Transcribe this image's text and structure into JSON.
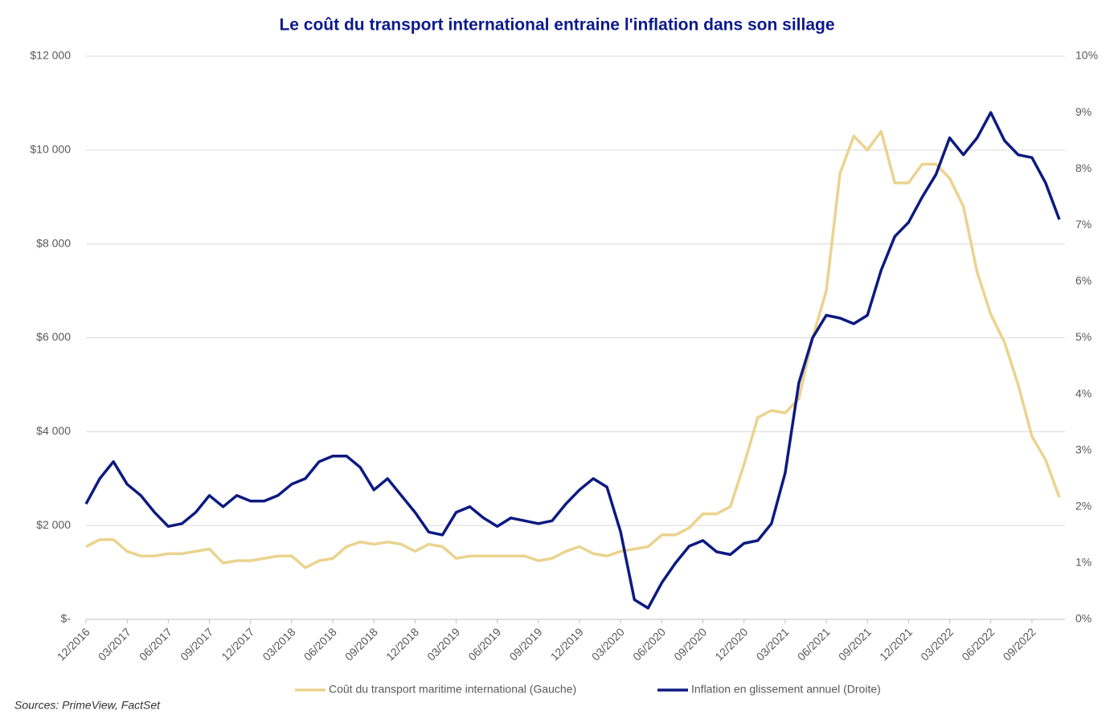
{
  "chart_data": {
    "type": "line",
    "title": "Le coût du transport international entraine l'inflation dans son sillage",
    "source": "Sources: PrimeView, FactSet",
    "categories": [
      "12/2016",
      null,
      null,
      "03/2017",
      null,
      null,
      "06/2017",
      null,
      null,
      "09/2017",
      null,
      null,
      "12/2017",
      null,
      null,
      "03/2018",
      null,
      null,
      "06/2018",
      null,
      null,
      "09/2018",
      null,
      null,
      "12/2018",
      null,
      null,
      "03/2019",
      null,
      null,
      "06/2019",
      null,
      null,
      "09/2019",
      null,
      null,
      "12/2019",
      null,
      null,
      "03/2020",
      null,
      null,
      "06/2020",
      null,
      null,
      "09/2020",
      null,
      null,
      "12/2020",
      null,
      null,
      "03/2021",
      null,
      null,
      "06/2021",
      null,
      null,
      "09/2021",
      null,
      null,
      "12/2021",
      null,
      null,
      "03/2022",
      null,
      null,
      "06/2022",
      null,
      null,
      "09/2022",
      null,
      null
    ],
    "series": [
      {
        "name": "Coût du transport maritime international (Gauche)",
        "color": "#ebd38f",
        "axis": "y",
        "values": [
          1550,
          1700,
          1700,
          1450,
          1350,
          1350,
          1400,
          1400,
          1450,
          1500,
          1200,
          1250,
          1250,
          1300,
          1350,
          1350,
          1100,
          1250,
          1300,
          1550,
          1650,
          1600,
          1650,
          1600,
          1450,
          1600,
          1550,
          1300,
          1350,
          1350,
          1350,
          1350,
          1350,
          1250,
          1300,
          1450,
          1550,
          1400,
          1350,
          1450,
          1500,
          1550,
          1800,
          1800,
          1950,
          2250,
          2250,
          2400,
          3300,
          4300,
          4450,
          4400,
          4700,
          6000,
          7000,
          9500,
          10300,
          10000,
          10400,
          9300,
          9300,
          9700,
          9700,
          9400,
          8800,
          7400,
          6500,
          5900,
          5000,
          3900,
          3400,
          2600
        ]
      },
      {
        "name": "Inflation en glissement annuel (Droite)",
        "color": "#0d1a80",
        "axis": "y2",
        "values": [
          2.05,
          2.5,
          2.8,
          2.4,
          2.2,
          1.9,
          1.65,
          1.7,
          1.9,
          2.2,
          2.0,
          2.2,
          2.1,
          2.1,
          2.2,
          2.4,
          2.5,
          2.8,
          2.9,
          2.9,
          2.7,
          2.3,
          2.5,
          2.2,
          1.9,
          1.55,
          1.5,
          1.9,
          2.0,
          1.8,
          1.65,
          1.8,
          1.75,
          1.7,
          1.75,
          2.05,
          2.3,
          2.5,
          2.35,
          1.55,
          0.35,
          0.2,
          0.65,
          1.0,
          1.3,
          1.4,
          1.2,
          1.15,
          1.35,
          1.4,
          1.7,
          2.6,
          4.2,
          5.0,
          5.4,
          5.35,
          5.25,
          5.4,
          6.2,
          6.8,
          7.05,
          7.5,
          7.9,
          8.55,
          8.25,
          8.55,
          9.0,
          8.5,
          8.25,
          8.2,
          7.75,
          7.1
        ]
      }
    ],
    "ylim": [
      0,
      12000
    ],
    "yticks": [
      {
        "value": 0,
        "label": "$-"
      },
      {
        "value": 2000,
        "label": "$2 000"
      },
      {
        "value": 4000,
        "label": "$4 000"
      },
      {
        "value": 6000,
        "label": "$6 000"
      },
      {
        "value": 8000,
        "label": "$8 000"
      },
      {
        "value": 10000,
        "label": "$10 000"
      },
      {
        "value": 12000,
        "label": "$12 000"
      }
    ],
    "y2lim": [
      0,
      10
    ],
    "y2ticks": [
      {
        "value": 0,
        "label": "0%"
      },
      {
        "value": 1,
        "label": "1%"
      },
      {
        "value": 2,
        "label": "2%"
      },
      {
        "value": 3,
        "label": "3%"
      },
      {
        "value": 4,
        "label": "4%"
      },
      {
        "value": 5,
        "label": "5%"
      },
      {
        "value": 6,
        "label": "6%"
      },
      {
        "value": 7,
        "label": "7%"
      },
      {
        "value": 8,
        "label": "8%"
      },
      {
        "value": 9,
        "label": "9%"
      },
      {
        "value": 10,
        "label": "10%"
      }
    ],
    "grid": true,
    "legend": "bottom"
  }
}
